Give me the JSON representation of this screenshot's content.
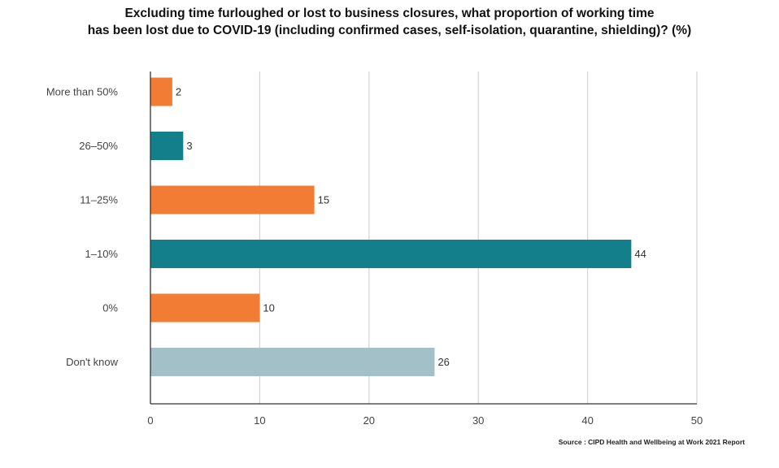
{
  "chart_data": {
    "type": "bar",
    "orientation": "horizontal",
    "title_lines": [
      "Excluding time furloughed or lost to business closures, what proportion of working time",
      "has been lost due to COVID-19 (including confirmed cases, self-isolation, quarantine, shielding)? (%)"
    ],
    "categories": [
      "More than 50%",
      "26–50%",
      "11–25%",
      "1–10%",
      "0%",
      "Don't know"
    ],
    "values": [
      2,
      3,
      15,
      44,
      10,
      26
    ],
    "value_labels": [
      "2",
      "3",
      "15",
      "44",
      "10",
      "26"
    ],
    "bar_colors": [
      "#f37c34",
      "#127f8a",
      "#f37c34",
      "#127f8a",
      "#f37c34",
      "#a3bfc7"
    ],
    "xlim": [
      0,
      50
    ],
    "xticks": [
      0,
      10,
      20,
      30,
      40,
      50
    ],
    "xtick_labels": [
      "0",
      "10",
      "20",
      "30",
      "40",
      "50"
    ],
    "grid": true,
    "gridline_color": "#d4d4d4",
    "axis_color": "#333333",
    "source": "Source : CIPD Health and Wellbeing at Work 2021 Report"
  }
}
